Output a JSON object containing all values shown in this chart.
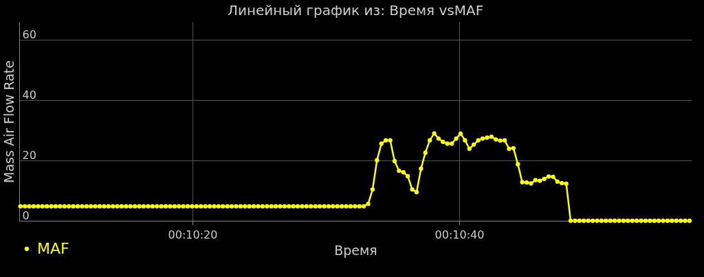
{
  "chart_data": {
    "type": "line",
    "title": "Линейный график из: Время vsMAF",
    "xlabel": "Время",
    "ylabel": "Mass Air Flow Rate",
    "xlim": [
      0.168614,
      0.182617
    ],
    "ylim": [
      0,
      66
    ],
    "xticks": [
      {
        "value": 0.172222,
        "label": "00:10:20"
      },
      {
        "value": 0.177778,
        "label": "00:10:40"
      }
    ],
    "yticks": [
      0,
      20,
      40,
      60
    ],
    "grid": true,
    "legend": "bottom left",
    "marker": "circle",
    "line_style": "solid",
    "x": [
      0.168639,
      0.168731,
      0.168822,
      0.168914,
      0.169006,
      0.169097,
      0.169189,
      0.169281,
      0.169372,
      0.169464,
      0.169556,
      0.169648,
      0.169739,
      0.169831,
      0.169923,
      0.170014,
      0.170106,
      0.170198,
      0.170289,
      0.170381,
      0.170472,
      0.170564,
      0.170655,
      0.170747,
      0.170839,
      0.17093,
      0.171022,
      0.171114,
      0.171205,
      0.171297,
      0.171389,
      0.171481,
      0.171572,
      0.171664,
      0.171756,
      0.171847,
      0.171939,
      0.172031,
      0.172122,
      0.172214,
      0.172306,
      0.172398,
      0.172489,
      0.172581,
      0.172673,
      0.172764,
      0.172856,
      0.172948,
      0.173039,
      0.173131,
      0.173223,
      0.173315,
      0.173406,
      0.173498,
      0.17359,
      0.173681,
      0.173773,
      0.173865,
      0.173956,
      0.174048,
      0.174139,
      0.174231,
      0.174322,
      0.174414,
      0.174506,
      0.174597,
      0.174689,
      0.174781,
      0.174872,
      0.174964,
      0.175056,
      0.175148,
      0.175239,
      0.175331,
      0.175423,
      0.175514,
      0.175606,
      0.175698,
      0.175789,
      0.175881,
      0.175973,
      0.176065,
      0.176156,
      0.176248,
      0.17634,
      0.176431,
      0.176523,
      0.176615,
      0.176706,
      0.176798,
      0.176889,
      0.176981,
      0.177072,
      0.177164,
      0.177256,
      0.177347,
      0.177439,
      0.177531,
      0.177622,
      0.177714,
      0.177806,
      0.177898,
      0.177989,
      0.178081,
      0.178173,
      0.178264,
      0.178356,
      0.178448,
      0.178539,
      0.178631,
      0.178723,
      0.178815,
      0.178906,
      0.178998,
      0.17909,
      0.179181,
      0.179273,
      0.179365,
      0.179456,
      0.179548,
      0.179639,
      0.179731,
      0.179822,
      0.179914,
      0.180006,
      0.180097,
      0.180189,
      0.180281,
      0.180372,
      0.180464,
      0.180556,
      0.180648,
      0.180739,
      0.180831,
      0.180923,
      0.181014,
      0.181106,
      0.181198,
      0.181289,
      0.181381,
      0.181473,
      0.181565,
      0.181656,
      0.181748,
      0.18184,
      0.181931,
      0.182023,
      0.182115,
      0.182206,
      0.182298,
      0.182389,
      0.182481,
      0.182572
    ],
    "series": [
      {
        "name": "MAF",
        "color": "#ffff00",
        "values": [
          4.8,
          4.8,
          4.8,
          4.8,
          4.8,
          4.8,
          4.8,
          4.8,
          4.8,
          4.8,
          4.8,
          4.8,
          4.8,
          4.8,
          4.8,
          4.8,
          4.8,
          4.8,
          4.8,
          4.8,
          4.8,
          4.8,
          4.8,
          4.8,
          4.8,
          4.8,
          4.8,
          4.8,
          4.8,
          4.8,
          4.8,
          4.8,
          4.8,
          4.8,
          4.8,
          4.8,
          4.8,
          4.8,
          4.8,
          4.8,
          4.8,
          4.8,
          4.8,
          4.8,
          4.8,
          4.8,
          4.8,
          4.8,
          4.8,
          4.8,
          4.8,
          4.8,
          4.8,
          4.8,
          4.8,
          4.8,
          4.8,
          4.8,
          4.8,
          4.8,
          4.8,
          4.8,
          4.8,
          4.8,
          4.8,
          4.8,
          4.8,
          4.8,
          4.8,
          4.8,
          4.8,
          4.8,
          4.8,
          4.8,
          4.8,
          4.8,
          4.8,
          4.8,
          4.8,
          5.6,
          10.4,
          20.1,
          25.6,
          26.7,
          26.7,
          19.8,
          16.6,
          16.1,
          14.8,
          10.4,
          9.5,
          17.3,
          22.6,
          26.7,
          29.0,
          27.3,
          26.2,
          25.6,
          25.6,
          27.3,
          28.9,
          26.7,
          23.9,
          25.3,
          26.7,
          27.3,
          27.6,
          27.9,
          27.0,
          26.6,
          26.7,
          23.9,
          24.1,
          18.8,
          12.8,
          12.7,
          12.4,
          13.5,
          13.3,
          13.9,
          14.7,
          14.6,
          13.0,
          12.5,
          12.3,
          0,
          0,
          0,
          0,
          0,
          0,
          0,
          0,
          0,
          0,
          0,
          0,
          0,
          0,
          0,
          0,
          0,
          0,
          0,
          0,
          0,
          0,
          0,
          0,
          0,
          0,
          0,
          0
        ]
      }
    ]
  }
}
